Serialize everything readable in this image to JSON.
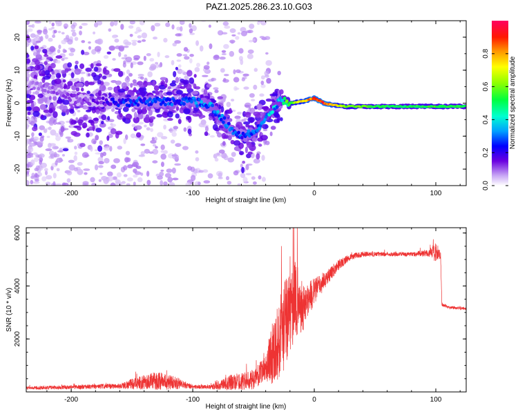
{
  "title": "PAZ1.2025.286.23.10.G03",
  "chart_data": [
    {
      "type": "heatmap",
      "xlabel": "Height of straight line (km)",
      "ylabel": "Frequency (Hz)",
      "xlim": [
        -237,
        125
      ],
      "ylim": [
        -25,
        25
      ],
      "xticks": [
        "-200",
        "-100",
        "0",
        "100"
      ],
      "xtick_values": [
        -200,
        -100,
        0,
        100
      ],
      "yticks": [
        "-20",
        "-10",
        "0",
        "10",
        "20"
      ],
      "ytick_values": [
        -20,
        -10,
        0,
        10,
        20
      ],
      "colorbar": {
        "label": "Normalized spectral amplitude",
        "range": [
          0,
          1
        ],
        "ticks": [
          "0.0",
          "0.2",
          "0.4",
          "0.6",
          "0.8"
        ],
        "tick_values": [
          0.0,
          0.2,
          0.4,
          0.6,
          0.8
        ]
      },
      "ridge": {
        "x": [
          -235,
          -215,
          -195,
          -175,
          -160,
          -140,
          -120,
          -100,
          -85,
          -75,
          -65,
          -58,
          -50,
          -42,
          -35,
          -28,
          -20,
          -10,
          0,
          8,
          15,
          25,
          50,
          75,
          100,
          125
        ],
        "freq": [
          6,
          4,
          1,
          0.5,
          0,
          0.5,
          0.5,
          0.5,
          -1,
          -5,
          -9,
          -10,
          -9,
          -5,
          -2,
          1,
          0,
          0.5,
          1.5,
          0,
          -0.5,
          -1,
          -1,
          -1,
          -1,
          -1
        ],
        "amplitude": [
          0.08,
          0.1,
          0.12,
          0.15,
          0.22,
          0.25,
          0.25,
          0.28,
          0.3,
          0.32,
          0.25,
          0.25,
          0.3,
          0.35,
          0.35,
          0.35,
          0.55,
          0.75,
          0.85,
          0.9,
          0.8,
          0.6,
          0.55,
          0.5,
          0.55,
          0.5
        ]
      }
    },
    {
      "type": "line",
      "xlabel": "Height of straight line (km)",
      "ylabel": "SNR (10 * v/v)",
      "xlim": [
        -237,
        125
      ],
      "ylim": [
        0,
        6200
      ],
      "xticks": [
        "-200",
        "-100",
        "0",
        "100"
      ],
      "xtick_values": [
        -200,
        -100,
        0,
        100
      ],
      "yticks": [
        "2000",
        "4000",
        "6000"
      ],
      "ytick_values": [
        2000,
        4000,
        6000
      ],
      "color": "#ee3333",
      "envelope": {
        "x": [
          -237,
          -200,
          -160,
          -150,
          -130,
          -115,
          -100,
          -85,
          -70,
          -50,
          -40,
          -35,
          -30,
          -25,
          -20,
          -15,
          -10,
          -5,
          0,
          10,
          20,
          30,
          40,
          60,
          80,
          95,
          100,
          104,
          105,
          110,
          125
        ],
        "mean": [
          150,
          180,
          220,
          300,
          420,
          350,
          200,
          180,
          350,
          450,
          900,
          1500,
          1800,
          2500,
          3000,
          3500,
          3200,
          3500,
          3800,
          4300,
          4800,
          5100,
          5200,
          5200,
          5200,
          5250,
          5300,
          5100,
          3300,
          3200,
          3150
        ],
        "noise": [
          60,
          80,
          100,
          200,
          350,
          250,
          80,
          80,
          300,
          350,
          500,
          1200,
          1400,
          1800,
          1600,
          1500,
          1000,
          700,
          500,
          300,
          200,
          120,
          100,
          80,
          80,
          150,
          400,
          200,
          80,
          60,
          60
        ]
      }
    }
  ]
}
